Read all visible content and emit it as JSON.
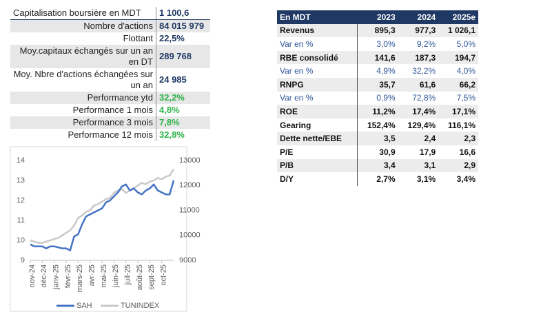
{
  "left_table": {
    "rows": [
      [
        "Capitalisation boursière en MDT",
        "1 100,6"
      ],
      [
        "Nombre d'actions",
        "84 015 979"
      ],
      [
        "Flottant",
        "22,5%"
      ],
      [
        "Moy.capitaux échangés sur un an en DT",
        "289 768"
      ],
      [
        "Moy. Nbre d'actions échangées sur un an",
        "24 985"
      ],
      [
        "Performance ytd",
        "32,2%"
      ],
      [
        "Performance 1 mois",
        "4,8%"
      ],
      [
        "Performance 3 mois",
        "7,8%"
      ],
      [
        "Performance 12 mois",
        "32,8%"
      ]
    ]
  },
  "right_table": {
    "header": [
      "En MDT",
      "2023",
      "2024",
      "2025e"
    ],
    "rows": [
      [
        "Revenus",
        "895,3",
        "977,3",
        "1 026,1"
      ],
      [
        "Var en %",
        "3,0%",
        "9,2%",
        "5,0%"
      ],
      [
        "RBE consolidé",
        "141,6",
        "187,3",
        "194,7"
      ],
      [
        "Var en %",
        "4,9%",
        "32,2%",
        "4,0%"
      ],
      [
        "RNPG",
        "35,7",
        "61,6",
        "66,2"
      ],
      [
        "Var en %",
        "0,9%",
        "72,8%",
        "7,5%"
      ],
      [
        "ROE",
        "11,2%",
        "17,4%",
        "17,1%"
      ],
      [
        "Gearing",
        "152,4%",
        "129,4%",
        "116,1%"
      ],
      [
        "Dette nette/EBE",
        "3,5",
        "2,4",
        "2,3"
      ],
      [
        "P/E",
        "30,9",
        "17,9",
        "16,6"
      ],
      [
        "P/B",
        "3,4",
        "3,1",
        "2,9"
      ],
      [
        "D/Y",
        "2,7%",
        "3,1%",
        "3,4%"
      ]
    ]
  },
  "chart_data": {
    "type": "line",
    "categories": [
      "nov-24",
      null,
      null,
      "déc-24",
      null,
      null,
      "janv-25",
      null,
      null,
      "févr-25",
      null,
      null,
      "mars-25",
      null,
      null,
      "avr-25",
      null,
      null,
      "mai-25",
      null,
      null,
      "juin-25",
      null,
      null,
      "juil-25",
      null,
      null,
      "août-25",
      null,
      null,
      "sept-25",
      null,
      null,
      "oct-25",
      null,
      null,
      null
    ],
    "series": [
      {
        "name": "SAH",
        "color": "#4472c4",
        "values": [
          9.8,
          9.7,
          9.7,
          9.7,
          9.6,
          9.7,
          9.7,
          9.65,
          9.6,
          9.6,
          9.5,
          10.2,
          10.3,
          10.8,
          11.2,
          11.3,
          11.4,
          11.5,
          11.6,
          11.9,
          12.0,
          12.2,
          12.4,
          12.7,
          12.8,
          12.5,
          12.6,
          12.4,
          12.3,
          12.5,
          12.6,
          12.8,
          12.5,
          12.4,
          12.3,
          12.3,
          13.0
        ]
      },
      {
        "name": "TUNINDEX",
        "color": "#c8c8c8",
        "axis": "y2",
        "values": [
          9800,
          9750,
          9700,
          9700,
          9750,
          9800,
          9850,
          9900,
          10000,
          10100,
          10200,
          10400,
          10700,
          10800,
          10950,
          11000,
          11200,
          11250,
          11350,
          11450,
          11500,
          11700,
          11800,
          11850,
          11700,
          11800,
          11900,
          12000,
          12100,
          12050,
          12150,
          12200,
          12300,
          12250,
          12350,
          12400,
          12650
        ]
      }
    ],
    "ylim": [
      9,
      14
    ],
    "yticks": [
      9,
      10,
      11,
      12,
      13,
      14
    ],
    "y2lim": [
      9000,
      13000
    ],
    "y2ticks": [
      9000,
      10000,
      11000,
      12000,
      13000
    ],
    "legend": "bottom"
  }
}
